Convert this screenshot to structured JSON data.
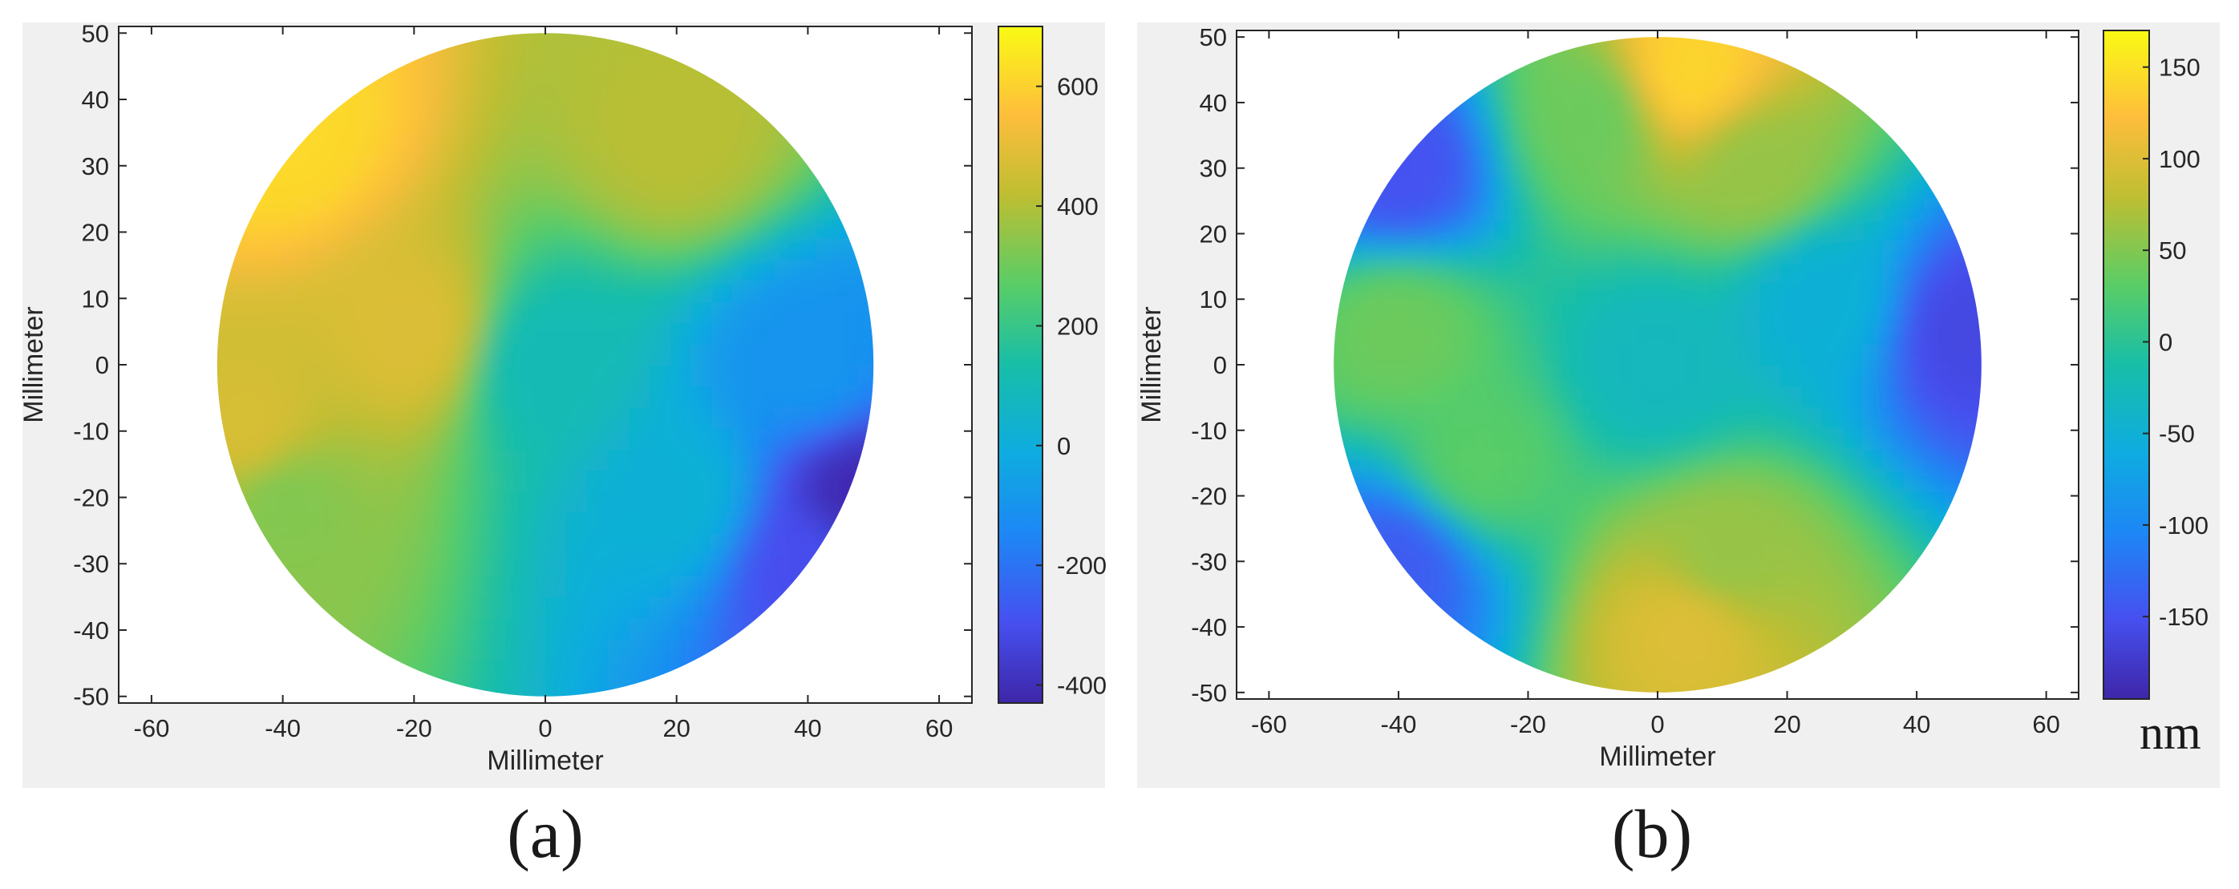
{
  "chart_data": [
    {
      "type": "heatmap",
      "panel": "(a)",
      "xlabel": "Millimeter",
      "ylabel": "Millimeter",
      "xlim": [
        -65,
        65
      ],
      "ylim": [
        -51,
        51
      ],
      "xticks": [
        -60,
        -40,
        -20,
        0,
        20,
        40,
        60
      ],
      "yticks": [
        -50,
        -40,
        -30,
        -20,
        -10,
        0,
        10,
        20,
        30,
        40,
        50
      ],
      "aperture": {
        "shape": "circle",
        "center": [
          0,
          0
        ],
        "radius": 50
      },
      "colormap": "parula",
      "colorbar": {
        "range": [
          -430,
          700
        ],
        "ticks": [
          600,
          400,
          200,
          0,
          -200,
          -400
        ]
      },
      "field_samples": [
        {
          "x": -40,
          "y": 35,
          "value": 620
        },
        {
          "x": -20,
          "y": 5,
          "value": 480
        },
        {
          "x": -45,
          "y": -10,
          "value": 470
        },
        {
          "x": 20,
          "y": 35,
          "value": 410
        },
        {
          "x": -40,
          "y": -20,
          "value": 330
        },
        {
          "x": 0,
          "y": 0,
          "value": 100
        },
        {
          "x": 20,
          "y": -20,
          "value": 20
        },
        {
          "x": 40,
          "y": 0,
          "value": -100
        },
        {
          "x": 40,
          "y": -30,
          "value": -300
        },
        {
          "x": 48,
          "y": -20,
          "value": -410
        }
      ]
    },
    {
      "type": "heatmap",
      "panel": "(b)",
      "xlabel": "Millimeter",
      "ylabel": "Millimeter",
      "xlim": [
        -65,
        65
      ],
      "ylim": [
        -51,
        51
      ],
      "xticks": [
        -60,
        -40,
        -20,
        0,
        20,
        40,
        60
      ],
      "yticks": [
        -50,
        -40,
        -30,
        -20,
        -10,
        0,
        10,
        20,
        30,
        40,
        50
      ],
      "aperture": {
        "shape": "circle",
        "center": [
          0,
          0
        ],
        "radius": 50
      },
      "colormap": "parula",
      "colorbar": {
        "range": [
          -195,
          170
        ],
        "ticks": [
          150,
          100,
          50,
          0,
          -50,
          -100,
          -150
        ],
        "unit": "nm"
      },
      "field_samples": [
        {
          "x": 5,
          "y": 45,
          "value": 140
        },
        {
          "x": 5,
          "y": -40,
          "value": 100
        },
        {
          "x": 15,
          "y": 30,
          "value": 60
        },
        {
          "x": -10,
          "y": 38,
          "value": 40
        },
        {
          "x": 10,
          "y": -30,
          "value": 60
        },
        {
          "x": -40,
          "y": 5,
          "value": 40
        },
        {
          "x": -28,
          "y": -15,
          "value": 30
        },
        {
          "x": 0,
          "y": 0,
          "value": -30
        },
        {
          "x": 25,
          "y": 10,
          "value": -50
        },
        {
          "x": -40,
          "y": 30,
          "value": -150
        },
        {
          "x": 48,
          "y": 5,
          "value": -160
        },
        {
          "x": -40,
          "y": -30,
          "value": -140
        }
      ]
    }
  ],
  "captions": {
    "a": "(a)",
    "b": "(b)"
  },
  "unit_label": "nm"
}
